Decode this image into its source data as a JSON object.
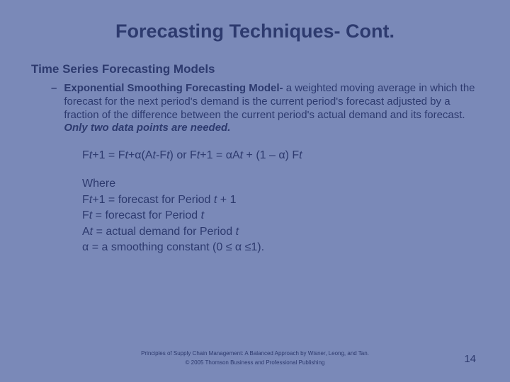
{
  "colors": {
    "background": "#7a89b8",
    "text": "#2d3a6e"
  },
  "title": "Forecasting Techniques- Cont.",
  "subtitle": "Time Series Forecasting Models",
  "bullet": {
    "dash": "–",
    "model_name": "Exponential Smoothing Forecasting Model-",
    "description_part1": " a weighted moving average in which the forecast for the next period's demand is the current period's forecast adjusted by a fraction of the difference between the current period's actual demand and its forecast. ",
    "emphasis": "Only two data points are needed."
  },
  "formula": {
    "line": "Ft+1 = Ft+α(At-Ft) or Ft+1 = αAt + (1 – α) Ft"
  },
  "where": {
    "heading": "Where",
    "line1_pre": "F",
    "line1_sub": "t+1",
    "line1_rest": " = forecast for Period t + 1",
    "line2_pre": "F",
    "line2_sub": "t",
    "line2_rest": " = forecast for Period t",
    "line3_pre": "A",
    "line3_sub": "t",
    "line3_rest": " = actual demand for Period t",
    "line4": "α = a smoothing constant (0 ≤ α ≤1)."
  },
  "footer": {
    "line1": "Principles of Supply Chain Management: A Balanced Approach by Wisner, Leong, and Tan.",
    "line2": "© 2005 Thomson Business and Professional Publishing"
  },
  "page_number": "14"
}
